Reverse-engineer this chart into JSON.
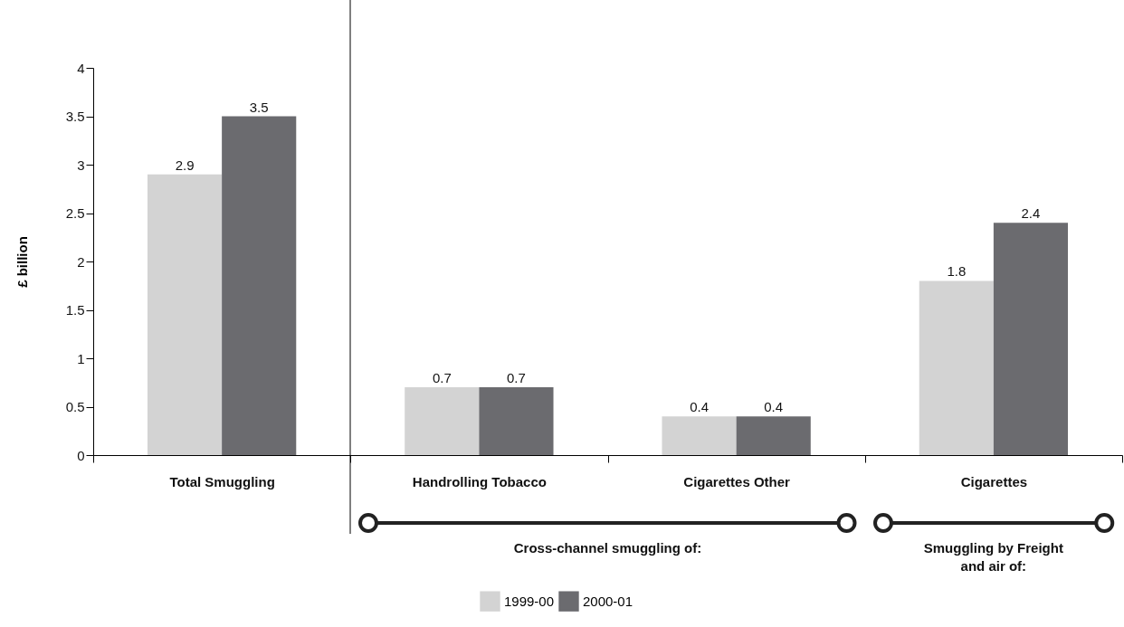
{
  "chart_data": {
    "type": "bar",
    "categories": [
      "Total Smuggling",
      "Handrolling Tobacco",
      "Cigarettes Other",
      "Cigarettes"
    ],
    "series": [
      {
        "name": "1999-00",
        "color": "#d3d3d3",
        "values": [
          2.9,
          0.7,
          0.4,
          1.8
        ]
      },
      {
        "name": "2000-01",
        "color": "#6b6b6f",
        "values": [
          3.5,
          0.7,
          0.4,
          2.4
        ]
      }
    ],
    "ylabel": "£ billion",
    "ylim": [
      0,
      4
    ],
    "yticks": [
      0,
      0.5,
      1,
      1.5,
      2,
      2.5,
      3,
      3.5,
      4
    ],
    "data_labels": true,
    "grid": false,
    "legend": "bottom",
    "annotations": [
      "Cross-channel smuggling of:",
      "Smuggling by Freight and air of:"
    ]
  }
}
